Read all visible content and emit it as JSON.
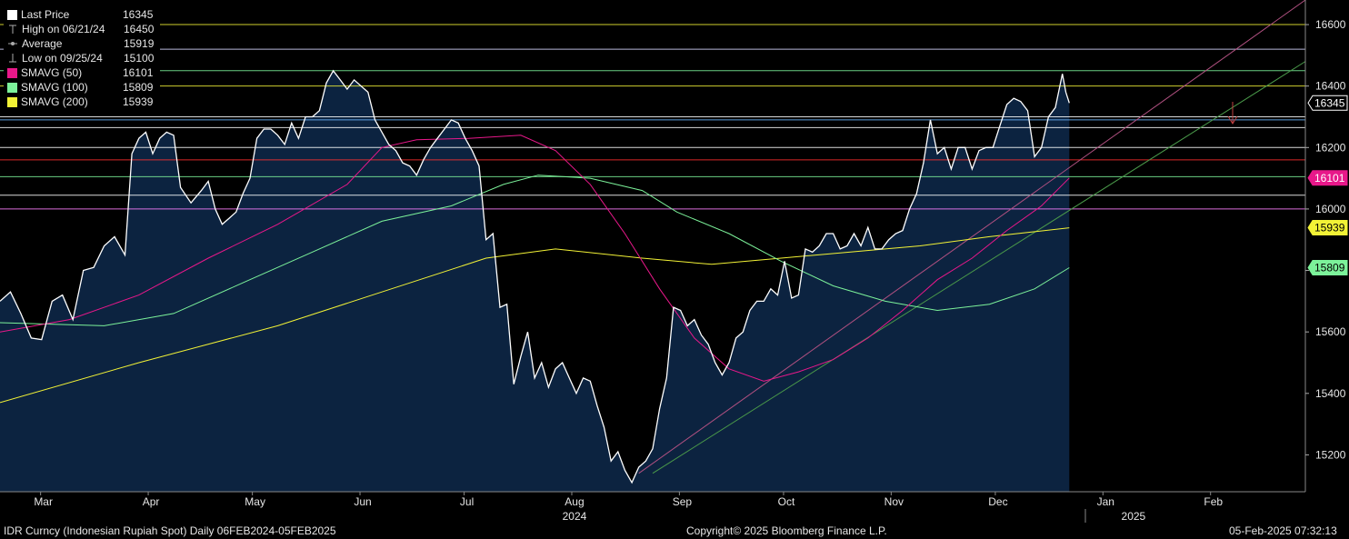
{
  "legend": [
    {
      "label": "Last Price",
      "value": "16345",
      "marker": "square",
      "color": "#ffffff"
    },
    {
      "label": "High on 06/21/24",
      "value": "16450",
      "marker": "high",
      "color": "#aaaaaa"
    },
    {
      "label": "Average",
      "value": "15919",
      "marker": "avg",
      "color": "#aaaaaa"
    },
    {
      "label": "Low on 09/25/24",
      "value": "15100",
      "marker": "low",
      "color": "#aaaaaa"
    },
    {
      "label": "SMAVG (50)",
      "value": "16101",
      "marker": "square",
      "color": "#e8188a"
    },
    {
      "label": "SMAVG (100)",
      "value": "15809",
      "marker": "square",
      "color": "#7cf29a"
    },
    {
      "label": "SMAVG (200)",
      "value": "15939",
      "marker": "square",
      "color": "#f2f236"
    }
  ],
  "footer": {
    "left": "IDR Curncy (Indonesian Rupiah Spot)  Daily 06FEB2024-05FEB2025",
    "center": "Copyright© 2025 Bloomberg Finance L.P.",
    "right": "05-Feb-2025 07:32:13"
  },
  "chart_data": {
    "type": "area",
    "title": "",
    "xlabel": "",
    "ylabel": "",
    "ylim": [
      15080,
      16680
    ],
    "yticks": [
      "15200",
      "15400",
      "15600",
      "15800",
      "16000",
      "16200",
      "16400",
      "16600"
    ],
    "months": [
      {
        "label": "Mar",
        "day": 24
      },
      {
        "label": "Apr",
        "day": 55
      },
      {
        "label": "May",
        "day": 85
      },
      {
        "label": "Jun",
        "day": 116
      },
      {
        "label": "Jul",
        "day": 146
      },
      {
        "label": "Aug",
        "day": 177
      },
      {
        "label": "Sep",
        "day": 208
      },
      {
        "label": "Oct",
        "day": 238
      },
      {
        "label": "Nov",
        "day": 269
      },
      {
        "label": "Dec",
        "day": 299
      },
      {
        "label": "Jan",
        "day": 330
      },
      {
        "label": "Feb",
        "day": 361
      }
    ],
    "years": [
      {
        "label": "2024",
        "day": 177
      },
      {
        "label": "2025",
        "day": 338
      }
    ],
    "x_range_days": [
      0,
      376
    ],
    "x_note": "days since 2024-02-06",
    "series": [
      {
        "name": "Last Price",
        "color": "#ffffff",
        "points": [
          [
            0,
            15700
          ],
          [
            3,
            15730
          ],
          [
            6,
            15660
          ],
          [
            9,
            15580
          ],
          [
            12,
            15575
          ],
          [
            15,
            15700
          ],
          [
            18,
            15720
          ],
          [
            21,
            15640
          ],
          [
            24,
            15800
          ],
          [
            27,
            15810
          ],
          [
            30,
            15880
          ],
          [
            33,
            15910
          ],
          [
            36,
            15850
          ],
          [
            38,
            16180
          ],
          [
            40,
            16230
          ],
          [
            42,
            16250
          ],
          [
            44,
            16180
          ],
          [
            46,
            16230
          ],
          [
            48,
            16250
          ],
          [
            50,
            16240
          ],
          [
            52,
            16070
          ],
          [
            55,
            16020
          ],
          [
            58,
            16060
          ],
          [
            60,
            16090
          ],
          [
            62,
            16000
          ],
          [
            64,
            15950
          ],
          [
            66,
            15970
          ],
          [
            68,
            15990
          ],
          [
            70,
            16050
          ],
          [
            72,
            16100
          ],
          [
            74,
            16230
          ],
          [
            76,
            16260
          ],
          [
            78,
            16260
          ],
          [
            80,
            16240
          ],
          [
            82,
            16210
          ],
          [
            84,
            16280
          ],
          [
            86,
            16230
          ],
          [
            88,
            16300
          ],
          [
            90,
            16300
          ],
          [
            92,
            16320
          ],
          [
            94,
            16410
          ],
          [
            96,
            16450
          ],
          [
            98,
            16420
          ],
          [
            100,
            16390
          ],
          [
            102,
            16420
          ],
          [
            104,
            16400
          ],
          [
            106,
            16380
          ],
          [
            108,
            16290
          ],
          [
            110,
            16250
          ],
          [
            112,
            16210
          ],
          [
            114,
            16190
          ],
          [
            116,
            16150
          ],
          [
            118,
            16140
          ],
          [
            120,
            16110
          ],
          [
            122,
            16160
          ],
          [
            124,
            16200
          ],
          [
            126,
            16230
          ],
          [
            128,
            16260
          ],
          [
            130,
            16290
          ],
          [
            132,
            16280
          ],
          [
            134,
            16230
          ],
          [
            136,
            16190
          ],
          [
            138,
            16140
          ],
          [
            140,
            15900
          ],
          [
            142,
            15920
          ],
          [
            144,
            15680
          ],
          [
            146,
            15690
          ],
          [
            148,
            15430
          ],
          [
            150,
            15520
          ],
          [
            152,
            15600
          ],
          [
            154,
            15450
          ],
          [
            156,
            15500
          ],
          [
            158,
            15420
          ],
          [
            160,
            15480
          ],
          [
            162,
            15500
          ],
          [
            164,
            15450
          ],
          [
            166,
            15400
          ],
          [
            168,
            15450
          ],
          [
            170,
            15440
          ],
          [
            172,
            15360
          ],
          [
            174,
            15290
          ],
          [
            176,
            15180
          ],
          [
            178,
            15210
          ],
          [
            180,
            15150
          ],
          [
            182,
            15110
          ],
          [
            184,
            15160
          ],
          [
            186,
            15180
          ],
          [
            188,
            15220
          ],
          [
            190,
            15350
          ],
          [
            192,
            15450
          ],
          [
            194,
            15680
          ],
          [
            196,
            15670
          ],
          [
            198,
            15620
          ],
          [
            200,
            15640
          ],
          [
            202,
            15590
          ],
          [
            204,
            15560
          ],
          [
            206,
            15500
          ],
          [
            208,
            15460
          ],
          [
            210,
            15500
          ],
          [
            212,
            15580
          ],
          [
            214,
            15600
          ],
          [
            216,
            15670
          ],
          [
            218,
            15700
          ],
          [
            220,
            15700
          ],
          [
            222,
            15740
          ],
          [
            224,
            15720
          ],
          [
            226,
            15830
          ],
          [
            228,
            15710
          ],
          [
            230,
            15720
          ],
          [
            232,
            15870
          ],
          [
            234,
            15860
          ],
          [
            236,
            15880
          ],
          [
            238,
            15920
          ],
          [
            240,
            15920
          ],
          [
            242,
            15870
          ],
          [
            244,
            15880
          ],
          [
            246,
            15920
          ],
          [
            248,
            15880
          ],
          [
            250,
            15940
          ],
          [
            252,
            15870
          ],
          [
            254,
            15870
          ],
          [
            256,
            15900
          ],
          [
            258,
            15920
          ],
          [
            260,
            15930
          ],
          [
            262,
            16000
          ],
          [
            264,
            16050
          ],
          [
            266,
            16150
          ],
          [
            268,
            16290
          ],
          [
            270,
            16180
          ],
          [
            272,
            16200
          ],
          [
            274,
            16130
          ],
          [
            276,
            16200
          ],
          [
            278,
            16200
          ],
          [
            280,
            16130
          ],
          [
            282,
            16190
          ],
          [
            284,
            16200
          ],
          [
            286,
            16200
          ],
          [
            288,
            16270
          ],
          [
            290,
            16340
          ],
          [
            292,
            16360
          ],
          [
            294,
            16350
          ],
          [
            296,
            16320
          ],
          [
            298,
            16170
          ],
          [
            300,
            16200
          ],
          [
            302,
            16300
          ],
          [
            304,
            16330
          ],
          [
            306,
            16440
          ],
          [
            307,
            16380
          ],
          [
            308,
            16345
          ]
        ]
      },
      {
        "name": "SMAVG (50)",
        "color": "#e8188a",
        "points": [
          [
            0,
            15600
          ],
          [
            20,
            15640
          ],
          [
            40,
            15720
          ],
          [
            60,
            15840
          ],
          [
            80,
            15950
          ],
          [
            100,
            16080
          ],
          [
            110,
            16200
          ],
          [
            120,
            16225
          ],
          [
            135,
            16230
          ],
          [
            150,
            16240
          ],
          [
            160,
            16190
          ],
          [
            170,
            16080
          ],
          [
            180,
            15920
          ],
          [
            190,
            15740
          ],
          [
            200,
            15580
          ],
          [
            210,
            15480
          ],
          [
            220,
            15440
          ],
          [
            230,
            15470
          ],
          [
            240,
            15510
          ],
          [
            250,
            15580
          ],
          [
            260,
            15670
          ],
          [
            270,
            15770
          ],
          [
            280,
            15840
          ],
          [
            290,
            15930
          ],
          [
            300,
            16010
          ],
          [
            308,
            16101
          ]
        ]
      },
      {
        "name": "SMAVG (100)",
        "color": "#7cf29a",
        "points": [
          [
            0,
            15630
          ],
          [
            30,
            15620
          ],
          [
            50,
            15660
          ],
          [
            70,
            15760
          ],
          [
            90,
            15860
          ],
          [
            110,
            15960
          ],
          [
            130,
            16010
          ],
          [
            145,
            16080
          ],
          [
            155,
            16110
          ],
          [
            170,
            16100
          ],
          [
            185,
            16060
          ],
          [
            195,
            15990
          ],
          [
            210,
            15920
          ],
          [
            225,
            15830
          ],
          [
            240,
            15750
          ],
          [
            255,
            15700
          ],
          [
            270,
            15670
          ],
          [
            285,
            15690
          ],
          [
            298,
            15740
          ],
          [
            308,
            15809
          ]
        ]
      },
      {
        "name": "SMAVG (200)",
        "color": "#f2f236",
        "points": [
          [
            0,
            15370
          ],
          [
            40,
            15500
          ],
          [
            80,
            15620
          ],
          [
            110,
            15730
          ],
          [
            140,
            15840
          ],
          [
            160,
            15870
          ],
          [
            185,
            15840
          ],
          [
            205,
            15820
          ],
          [
            225,
            15840
          ],
          [
            245,
            15860
          ],
          [
            265,
            15880
          ],
          [
            285,
            15910
          ],
          [
            308,
            15939
          ]
        ]
      }
    ],
    "horizontal_levels": [
      {
        "value": 16600,
        "color": "#f2f236"
      },
      {
        "value": 16520,
        "color": "#d8d8ff"
      },
      {
        "value": 16450,
        "color": "#7cf29a"
      },
      {
        "value": 16400,
        "color": "#f2f236"
      },
      {
        "value": 16300,
        "color": "#ffffff"
      },
      {
        "value": 16290,
        "color": "#6fb8ff"
      },
      {
        "value": 16265,
        "color": "#ffffff"
      },
      {
        "value": 16200,
        "color": "#ffffff"
      },
      {
        "value": 16160,
        "color": "#ff3030"
      },
      {
        "value": 16105,
        "color": "#7cf29a"
      },
      {
        "value": 16045,
        "color": "#ffffff"
      },
      {
        "value": 16000,
        "color": "#ff80ff"
      }
    ],
    "trend_lines": [
      {
        "from": [
          184,
          15140
        ],
        "to": [
          376,
          16680
        ],
        "color": "#b05080"
      },
      {
        "from": [
          188,
          15140
        ],
        "to": [
          376,
          16480
        ],
        "color": "#4a9a4a"
      }
    ],
    "tags": [
      {
        "value": "16345",
        "y": 16345,
        "bg": "#000000",
        "fg": "#ffffff",
        "border": "#ffffff"
      },
      {
        "value": "16101",
        "y": 16101,
        "bg": "#e8188a",
        "fg": "#ffffff",
        "border": "#e8188a"
      },
      {
        "value": "15939",
        "y": 15939,
        "bg": "#f2f236",
        "fg": "#000000",
        "border": "#f2f236"
      },
      {
        "value": "15809",
        "y": 15809,
        "bg": "#7cf29a",
        "fg": "#000000",
        "border": "#7cf29a"
      }
    ]
  }
}
